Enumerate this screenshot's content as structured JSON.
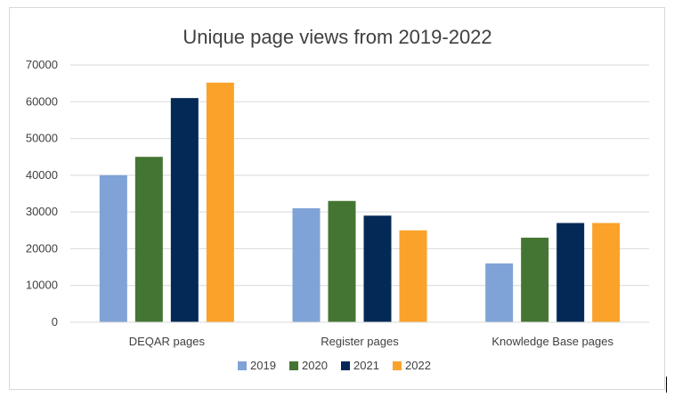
{
  "chart_data": {
    "type": "bar",
    "title": "Unique page views from 2019-2022",
    "categories": [
      "DEQAR pages",
      "Register pages",
      "Knowledge Base pages"
    ],
    "series": [
      {
        "name": "2019",
        "color": "#7fa3d6",
        "values": [
          40000,
          31000,
          16000
        ]
      },
      {
        "name": "2020",
        "color": "#457532",
        "values": [
          45000,
          33000,
          23000
        ]
      },
      {
        "name": "2021",
        "color": "#032a56",
        "values": [
          61000,
          29000,
          27000
        ]
      },
      {
        "name": "2022",
        "color": "#fba22a",
        "values": [
          65200,
          25000,
          27000
        ]
      }
    ],
    "ylim": [
      0,
      70000
    ],
    "yticks": [
      "0",
      "10000",
      "20000",
      "30000",
      "40000",
      "50000",
      "60000",
      "70000"
    ],
    "grid": true,
    "legend": "bottom",
    "xlabel": "",
    "ylabel": ""
  }
}
